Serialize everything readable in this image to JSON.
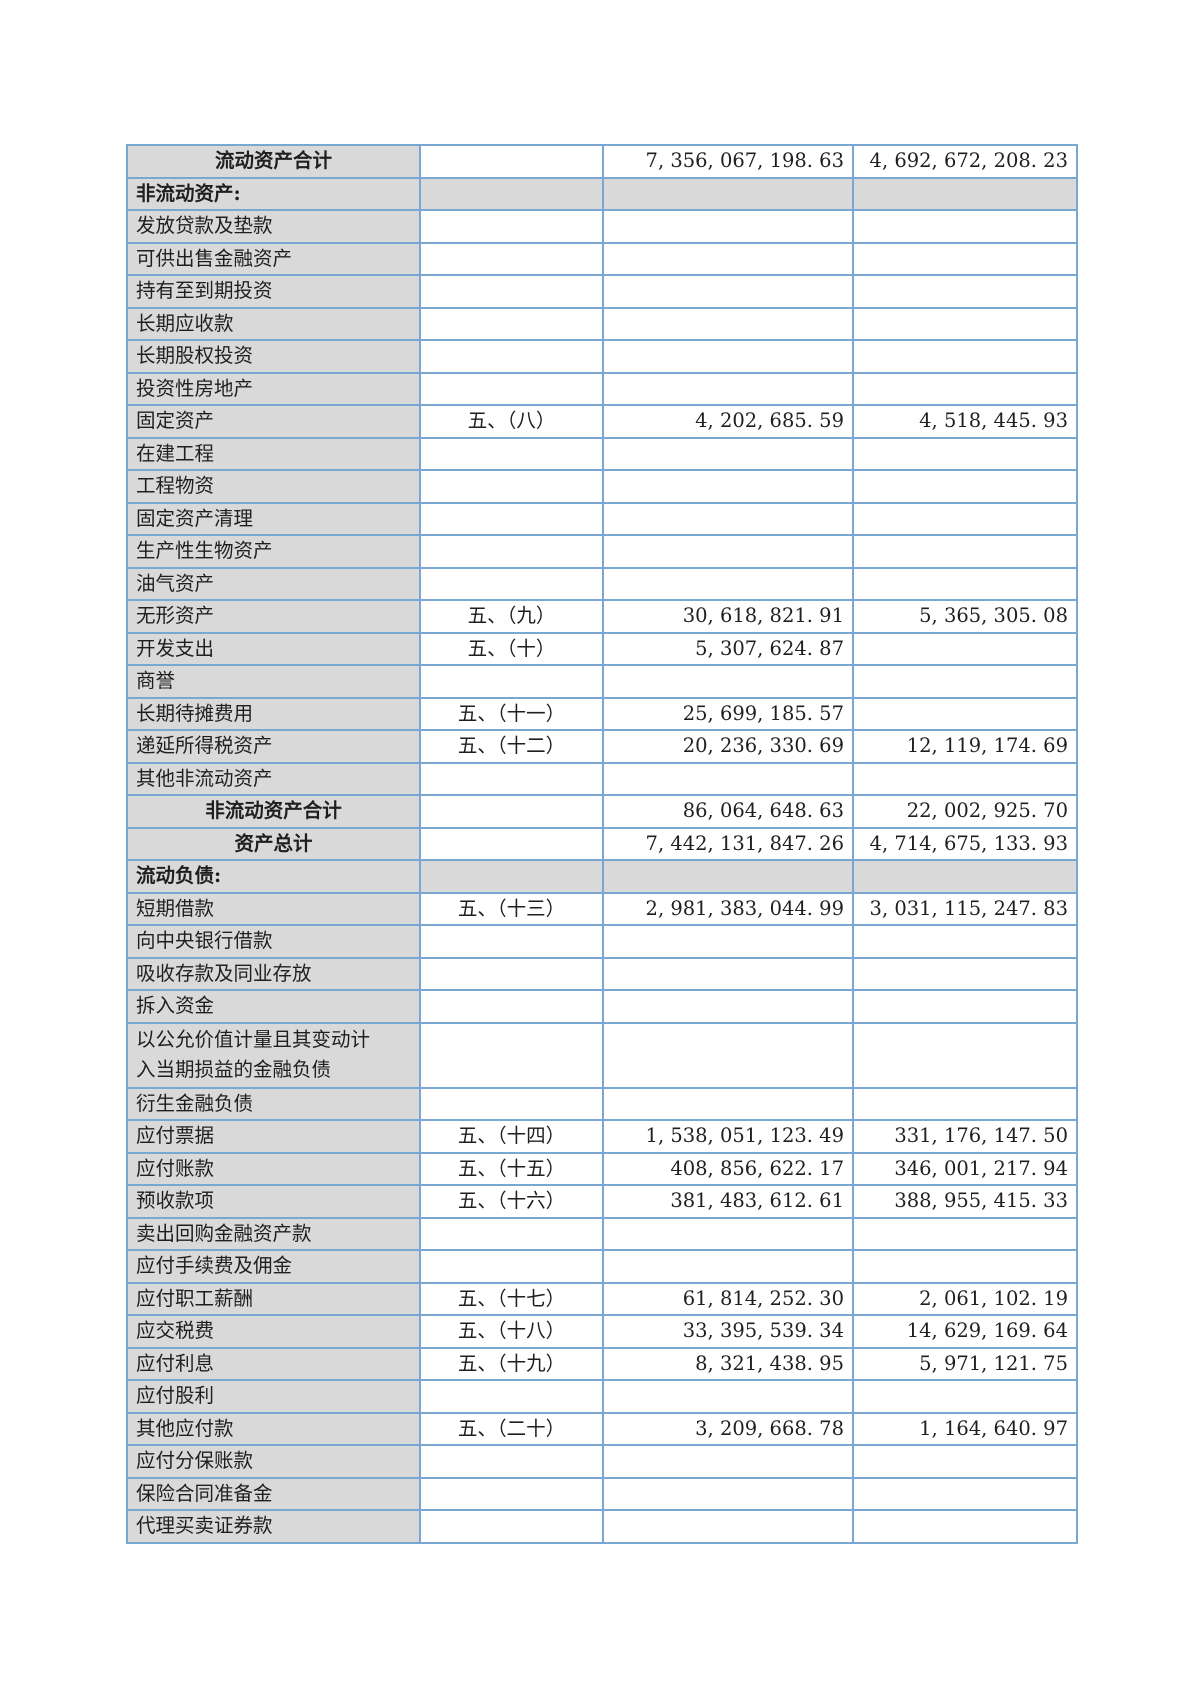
{
  "colors": {
    "table_border": "#7aa6d2",
    "row_shade": "#d9d9d9",
    "text": "#1f1f1f",
    "page_background": "#ffffff"
  },
  "table": {
    "column_names": [
      "item",
      "note",
      "current_period",
      "prior_period"
    ],
    "rows": [
      {
        "type": "total",
        "label": "流动资产合计",
        "current": "7, 356, 067, 198. 63",
        "prior": "4, 692, 672, 208. 23"
      },
      {
        "type": "section",
        "label": "非流动资产:"
      },
      {
        "type": "item",
        "label": "发放贷款及垫款"
      },
      {
        "type": "item",
        "label": "可供出售金融资产"
      },
      {
        "type": "item",
        "label": "持有至到期投资"
      },
      {
        "type": "item",
        "label": "长期应收款"
      },
      {
        "type": "item",
        "label": "长期股权投资"
      },
      {
        "type": "item",
        "label": "投资性房地产"
      },
      {
        "type": "item",
        "label": "固定资产",
        "note": "五、（八）",
        "current": "4, 202, 685. 59",
        "prior": "4, 518, 445. 93"
      },
      {
        "type": "item",
        "label": "在建工程"
      },
      {
        "type": "item",
        "label": "工程物资"
      },
      {
        "type": "item",
        "label": "固定资产清理"
      },
      {
        "type": "item",
        "label": "生产性生物资产"
      },
      {
        "type": "item",
        "label": "油气资产"
      },
      {
        "type": "item",
        "label": "无形资产",
        "note": "五、（九）",
        "current": "30, 618, 821. 91",
        "prior": "5, 365, 305. 08"
      },
      {
        "type": "item",
        "label": "开发支出",
        "note": "五、（十）",
        "current": "5, 307, 624. 87"
      },
      {
        "type": "item",
        "label": "商誉"
      },
      {
        "type": "item",
        "label": "长期待摊费用",
        "note": "五、（十一）",
        "current": "25, 699, 185. 57"
      },
      {
        "type": "item",
        "label": "递延所得税资产",
        "note": "五、（十二）",
        "current": "20, 236, 330. 69",
        "prior": "12, 119, 174. 69"
      },
      {
        "type": "item",
        "label": "其他非流动资产"
      },
      {
        "type": "total",
        "label": "非流动资产合计",
        "current": "86, 064, 648. 63",
        "prior": "22, 002, 925. 70"
      },
      {
        "type": "total",
        "label": "资产总计",
        "current": "7, 442, 131, 847. 26",
        "prior": "4, 714, 675, 133. 93"
      },
      {
        "type": "section",
        "label": "流动负债:"
      },
      {
        "type": "item",
        "label": "短期借款",
        "note": "五、（十三）",
        "current": "2, 981, 383, 044. 99",
        "prior": "3, 031, 115, 247. 83"
      },
      {
        "type": "item",
        "label": "向中央银行借款"
      },
      {
        "type": "item",
        "label": "吸收存款及同业存放"
      },
      {
        "type": "item",
        "label": "拆入资金"
      },
      {
        "type": "item",
        "label": "以公允价值计量且其变动计\n入当期损益的金融负债"
      },
      {
        "type": "item",
        "label": "衍生金融负债"
      },
      {
        "type": "item",
        "label": "应付票据",
        "note": "五、（十四）",
        "current": "1, 538, 051, 123. 49",
        "prior": "331, 176, 147. 50"
      },
      {
        "type": "item",
        "label": "应付账款",
        "note": "五、（十五）",
        "current": "408, 856, 622. 17",
        "prior": "346, 001, 217. 94"
      },
      {
        "type": "item",
        "label": "预收款项",
        "note": "五、（十六）",
        "current": "381, 483, 612. 61",
        "prior": "388, 955, 415. 33"
      },
      {
        "type": "item",
        "label": "卖出回购金融资产款"
      },
      {
        "type": "item",
        "label": "应付手续费及佣金"
      },
      {
        "type": "item",
        "label": "应付职工薪酬",
        "note": "五、（十七）",
        "current": "61, 814, 252. 30",
        "prior": "2, 061, 102. 19"
      },
      {
        "type": "item",
        "label": "应交税费",
        "note": "五、（十八）",
        "current": "33, 395, 539. 34",
        "prior": "14, 629, 169. 64"
      },
      {
        "type": "item",
        "label": "应付利息",
        "note": "五、（十九）",
        "current": "8, 321, 438. 95",
        "prior": "5, 971, 121. 75"
      },
      {
        "type": "item",
        "label": "应付股利"
      },
      {
        "type": "item",
        "label": "其他应付款",
        "note": "五、（二十）",
        "current": "3, 209, 668. 78",
        "prior": "1, 164, 640. 97"
      },
      {
        "type": "item",
        "label": "应付分保账款"
      },
      {
        "type": "item",
        "label": "保险合同准备金"
      },
      {
        "type": "item",
        "label": "代理买卖证券款"
      }
    ]
  }
}
